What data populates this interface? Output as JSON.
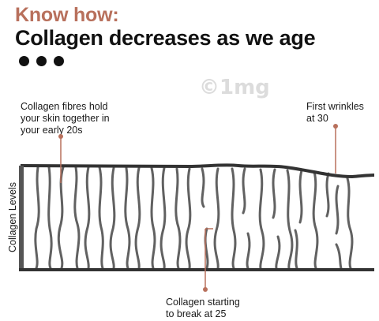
{
  "header": {
    "kicker": "Know how:",
    "headline": "Collagen decreases as we age"
  },
  "watermark": "©1mg",
  "annotations": {
    "early_20s": [
      "Collagen fibres hold",
      "your skin together in",
      "your early 20s"
    ],
    "wrinkles": [
      "First wrinkles",
      "at 30"
    ],
    "break": [
      "Collagen starting",
      "to break at 25"
    ]
  },
  "axis": {
    "y_label": "Collagen Levels"
  },
  "colors": {
    "accent": "#b8705c",
    "fibre": "#616161",
    "skin_edge": "#333333"
  }
}
